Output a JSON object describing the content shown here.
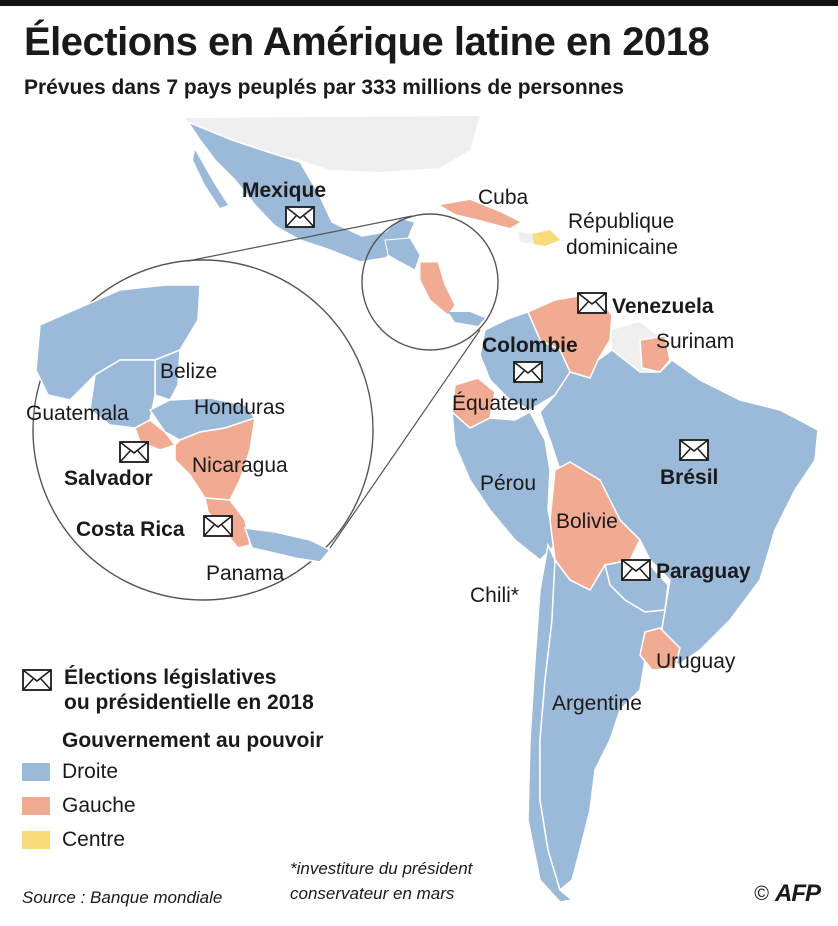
{
  "header": {
    "title": "Élections en Amérique latine en 2018",
    "subtitle": "Prévues dans 7 pays peuplés par 333 millions de personnes"
  },
  "colors": {
    "droite": "#9bb9d8",
    "gauche": "#f1ab92",
    "centre": "#f8dc7a",
    "other_land": "#efefef",
    "border": "#ffffff"
  },
  "countries": {
    "mexique": "Mexique",
    "cuba": "Cuba",
    "rep_dom": [
      "République",
      "dominicaine"
    ],
    "venezuela": "Venezuela",
    "colombie": "Colombie",
    "surinam": "Surinam",
    "equateur": "Équateur",
    "bresil": "Brésil",
    "perou": "Pérou",
    "bolivie": "Bolivie",
    "paraguay": "Paraguay",
    "chili": "Chili*",
    "uruguay": "Uruguay",
    "argentine": "Argentine",
    "belize": "Belize",
    "guatemala": "Guatemala",
    "honduras": "Honduras",
    "nicaragua": "Nicaragua",
    "salvador": "Salvador",
    "costa_rica": "Costa Rica",
    "panama": "Panama"
  },
  "legend": {
    "elections_label": [
      "Élections législatives",
      "ou présidentielle en 2018"
    ],
    "government_title": "Gouvernement au pouvoir",
    "items": [
      {
        "label": "Droite",
        "color": "#9bb9d8"
      },
      {
        "label": "Gauche",
        "color": "#f1ab92"
      },
      {
        "label": "Centre",
        "color": "#f8dc7a"
      }
    ]
  },
  "footnote": [
    "*investiture du président",
    "conservateur en mars"
  ],
  "source": "Source : Banque mondiale",
  "credit": {
    "copyright": "©",
    "agency": "AFP"
  }
}
